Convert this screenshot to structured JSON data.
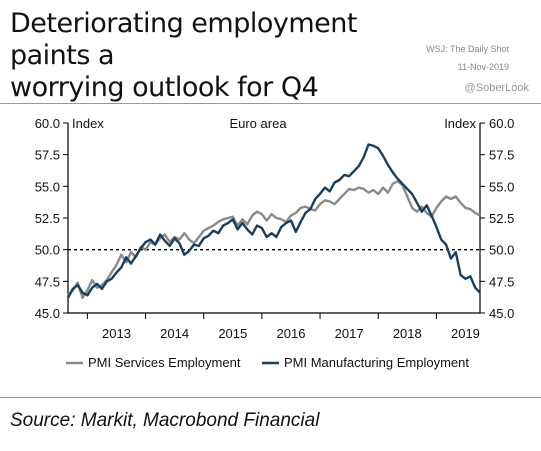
{
  "header": {
    "title_line1": "Deteriorating employment paints a",
    "title_line2": "worrying outlook for Q4",
    "source_label": "WSJ: The Daily Shot",
    "date": "11-Nov-2019",
    "handle": "@SoberLook"
  },
  "footer": {
    "source": "Source: Markit, Macrobond Financial"
  },
  "colors": {
    "services": "#8a8a8a",
    "manufacturing": "#173f5f",
    "axis": "#000000"
  },
  "chart_data": {
    "type": "line",
    "title": "Euro area",
    "ylabel_left": "Index",
    "ylabel_right": "Index",
    "ylim": [
      45.0,
      60.0
    ],
    "yticks": [
      "45.0",
      "47.5",
      "50.0",
      "52.5",
      "55.0",
      "57.5",
      "60.0"
    ],
    "x_range": [
      "2012-09",
      "2019-10"
    ],
    "xtick_labels": [
      "2013",
      "2014",
      "2015",
      "2016",
      "2017",
      "2018",
      "2019"
    ],
    "reference_line": 50.0,
    "legend_position": "bottom",
    "series": [
      {
        "name": "PMI Services Employment",
        "color": "#8a8a8a",
        "points": [
          [
            "2012-09",
            46.4
          ],
          [
            "2012-10",
            46.8
          ],
          [
            "2012-11",
            47.4
          ],
          [
            "2012-12",
            46.2
          ],
          [
            "2013-01",
            46.8
          ],
          [
            "2013-02",
            47.6
          ],
          [
            "2013-03",
            47.0
          ],
          [
            "2013-04",
            47.2
          ],
          [
            "2013-05",
            47.6
          ],
          [
            "2013-06",
            48.2
          ],
          [
            "2013-07",
            48.8
          ],
          [
            "2013-08",
            49.6
          ],
          [
            "2013-09",
            49.0
          ],
          [
            "2013-10",
            49.8
          ],
          [
            "2013-11",
            49.4
          ],
          [
            "2013-12",
            50.2
          ],
          [
            "2014-01",
            50.0
          ],
          [
            "2014-02",
            50.6
          ],
          [
            "2014-03",
            50.4
          ],
          [
            "2014-04",
            50.9
          ],
          [
            "2014-05",
            51.2
          ],
          [
            "2014-06",
            50.6
          ],
          [
            "2014-07",
            51.0
          ],
          [
            "2014-08",
            50.8
          ],
          [
            "2014-09",
            51.3
          ],
          [
            "2014-10",
            50.8
          ],
          [
            "2014-11",
            50.5
          ],
          [
            "2014-12",
            51.0
          ],
          [
            "2015-01",
            51.5
          ],
          [
            "2015-02",
            51.7
          ],
          [
            "2015-03",
            51.9
          ],
          [
            "2015-04",
            52.2
          ],
          [
            "2015-05",
            52.4
          ],
          [
            "2015-06",
            52.5
          ],
          [
            "2015-07",
            52.6
          ],
          [
            "2015-08",
            51.9
          ],
          [
            "2015-09",
            52.4
          ],
          [
            "2015-10",
            52.0
          ],
          [
            "2015-11",
            52.7
          ],
          [
            "2015-12",
            53.0
          ],
          [
            "2016-01",
            52.8
          ],
          [
            "2016-02",
            52.3
          ],
          [
            "2016-03",
            52.8
          ],
          [
            "2016-04",
            52.5
          ],
          [
            "2016-05",
            52.4
          ],
          [
            "2016-06",
            52.2
          ],
          [
            "2016-07",
            52.7
          ],
          [
            "2016-08",
            52.9
          ],
          [
            "2016-09",
            53.3
          ],
          [
            "2016-10",
            53.4
          ],
          [
            "2016-11",
            53.2
          ],
          [
            "2016-12",
            53.1
          ],
          [
            "2017-01",
            53.6
          ],
          [
            "2017-02",
            53.9
          ],
          [
            "2017-03",
            53.8
          ],
          [
            "2017-04",
            53.6
          ],
          [
            "2017-05",
            54.0
          ],
          [
            "2017-06",
            54.4
          ],
          [
            "2017-07",
            54.8
          ],
          [
            "2017-08",
            54.7
          ],
          [
            "2017-09",
            54.9
          ],
          [
            "2017-10",
            54.8
          ],
          [
            "2017-11",
            54.5
          ],
          [
            "2017-12",
            54.7
          ],
          [
            "2018-01",
            54.4
          ],
          [
            "2018-02",
            54.9
          ],
          [
            "2018-03",
            54.5
          ],
          [
            "2018-04",
            55.2
          ],
          [
            "2018-05",
            55.4
          ],
          [
            "2018-06",
            55.1
          ],
          [
            "2018-07",
            54.2
          ],
          [
            "2018-08",
            53.3
          ],
          [
            "2018-09",
            53.0
          ],
          [
            "2018-10",
            53.4
          ],
          [
            "2018-11",
            52.9
          ],
          [
            "2018-12",
            52.6
          ],
          [
            "2019-01",
            53.3
          ],
          [
            "2019-02",
            53.8
          ],
          [
            "2019-03",
            54.2
          ],
          [
            "2019-04",
            54.0
          ],
          [
            "2019-05",
            54.2
          ],
          [
            "2019-06",
            53.7
          ],
          [
            "2019-07",
            53.3
          ],
          [
            "2019-08",
            53.2
          ],
          [
            "2019-09",
            52.9
          ],
          [
            "2019-10",
            52.7
          ]
        ]
      },
      {
        "name": "PMI Manufacturing Employment",
        "color": "#173f5f",
        "points": [
          [
            "2012-09",
            46.2
          ],
          [
            "2012-10",
            46.9
          ],
          [
            "2012-11",
            47.2
          ],
          [
            "2012-12",
            46.6
          ],
          [
            "2013-01",
            46.4
          ],
          [
            "2013-02",
            47.0
          ],
          [
            "2013-03",
            47.3
          ],
          [
            "2013-04",
            46.9
          ],
          [
            "2013-05",
            47.5
          ],
          [
            "2013-06",
            47.7
          ],
          [
            "2013-07",
            48.2
          ],
          [
            "2013-08",
            48.6
          ],
          [
            "2013-09",
            49.4
          ],
          [
            "2013-10",
            48.9
          ],
          [
            "2013-11",
            49.5
          ],
          [
            "2013-12",
            50.1
          ],
          [
            "2014-01",
            50.6
          ],
          [
            "2014-02",
            50.8
          ],
          [
            "2014-03",
            50.4
          ],
          [
            "2014-04",
            51.2
          ],
          [
            "2014-05",
            50.7
          ],
          [
            "2014-06",
            50.3
          ],
          [
            "2014-07",
            50.9
          ],
          [
            "2014-08",
            50.5
          ],
          [
            "2014-09",
            49.6
          ],
          [
            "2014-10",
            49.9
          ],
          [
            "2014-11",
            50.4
          ],
          [
            "2014-12",
            50.3
          ],
          [
            "2015-01",
            50.9
          ],
          [
            "2015-02",
            51.1
          ],
          [
            "2015-03",
            51.5
          ],
          [
            "2015-04",
            51.3
          ],
          [
            "2015-05",
            51.9
          ],
          [
            "2015-06",
            52.1
          ],
          [
            "2015-07",
            52.4
          ],
          [
            "2015-08",
            51.6
          ],
          [
            "2015-09",
            52.1
          ],
          [
            "2015-10",
            51.6
          ],
          [
            "2015-11",
            51.2
          ],
          [
            "2015-12",
            51.9
          ],
          [
            "2016-01",
            51.7
          ],
          [
            "2016-02",
            51.0
          ],
          [
            "2016-03",
            51.3
          ],
          [
            "2016-04",
            51.0
          ],
          [
            "2016-05",
            51.8
          ],
          [
            "2016-06",
            52.1
          ],
          [
            "2016-07",
            52.3
          ],
          [
            "2016-08",
            51.4
          ],
          [
            "2016-09",
            52.2
          ],
          [
            "2016-10",
            52.9
          ],
          [
            "2016-11",
            53.2
          ],
          [
            "2016-12",
            54.0
          ],
          [
            "2017-01",
            54.4
          ],
          [
            "2017-02",
            54.9
          ],
          [
            "2017-03",
            54.6
          ],
          [
            "2017-04",
            55.3
          ],
          [
            "2017-05",
            55.5
          ],
          [
            "2017-06",
            55.9
          ],
          [
            "2017-07",
            55.8
          ],
          [
            "2017-08",
            56.2
          ],
          [
            "2017-09",
            56.6
          ],
          [
            "2017-10",
            57.3
          ],
          [
            "2017-11",
            58.3
          ],
          [
            "2017-12",
            58.2
          ],
          [
            "2018-01",
            58.0
          ],
          [
            "2018-02",
            57.4
          ],
          [
            "2018-03",
            56.7
          ],
          [
            "2018-04",
            56.1
          ],
          [
            "2018-05",
            55.6
          ],
          [
            "2018-06",
            55.2
          ],
          [
            "2018-07",
            54.8
          ],
          [
            "2018-08",
            54.4
          ],
          [
            "2018-09",
            53.7
          ],
          [
            "2018-10",
            53.0
          ],
          [
            "2018-11",
            53.5
          ],
          [
            "2018-12",
            52.7
          ],
          [
            "2019-01",
            51.8
          ],
          [
            "2019-02",
            50.8
          ],
          [
            "2019-03",
            50.4
          ],
          [
            "2019-04",
            49.3
          ],
          [
            "2019-05",
            49.8
          ],
          [
            "2019-06",
            48.0
          ],
          [
            "2019-07",
            47.7
          ],
          [
            "2019-08",
            47.9
          ],
          [
            "2019-09",
            47.0
          ],
          [
            "2019-10",
            46.6
          ]
        ]
      }
    ]
  }
}
